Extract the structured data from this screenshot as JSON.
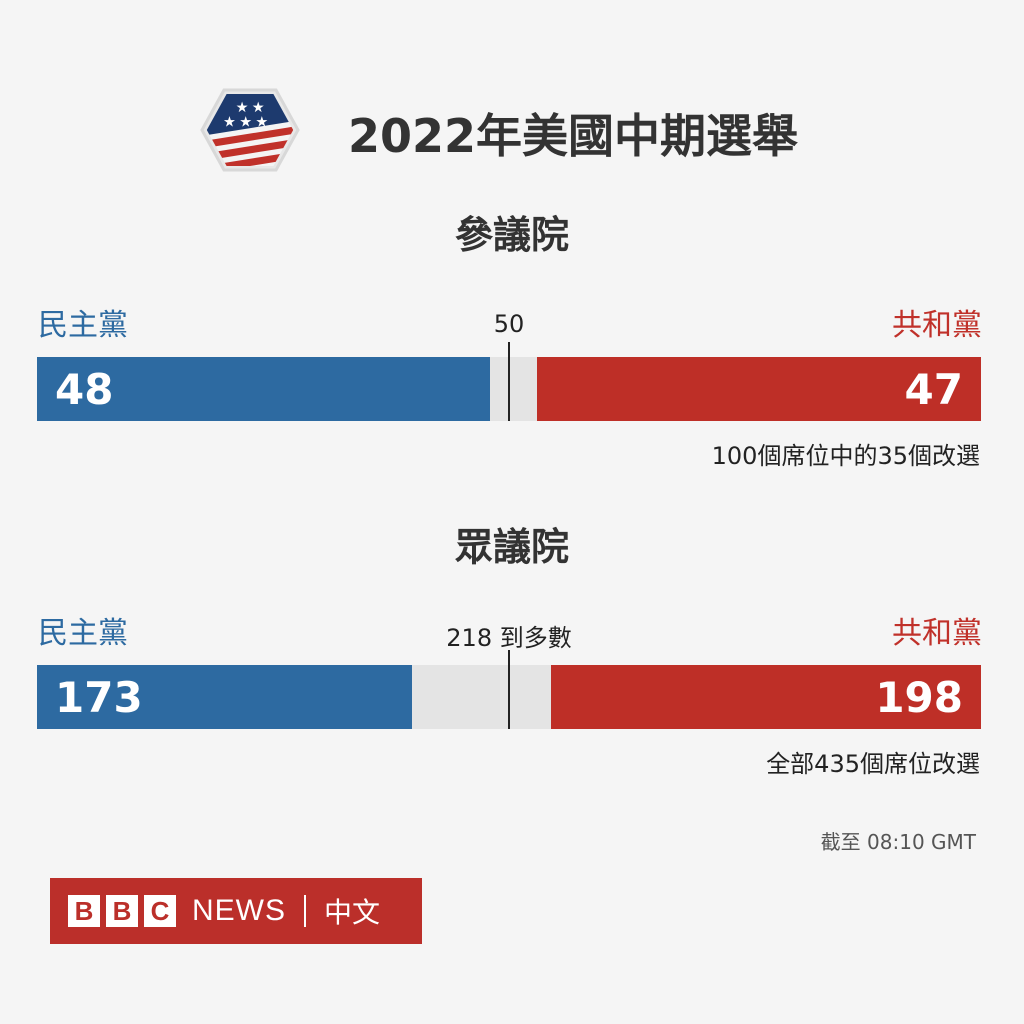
{
  "header": {
    "title": "2022年美國中期選舉",
    "logo_icon": "us-flag-hexagon-icon"
  },
  "colors": {
    "democrat": "#2d6aa1",
    "republican": "#be2f27",
    "track": "#e4e4e4",
    "background": "#f5f5f5"
  },
  "chart_data": [
    {
      "type": "bar",
      "title": "參議院",
      "categories": [
        "民主黨",
        "共和黨"
      ],
      "values": [
        48,
        47
      ],
      "total": 100,
      "threshold": 50,
      "threshold_label": "50",
      "note": "100個席位中的35個改選",
      "dem_label": "民主黨",
      "rep_label": "共和黨",
      "dem_value": "48",
      "rep_value": "47"
    },
    {
      "type": "bar",
      "title": "眾議院",
      "categories": [
        "民主黨",
        "共和黨"
      ],
      "values": [
        173,
        198
      ],
      "total": 435,
      "threshold": 218,
      "threshold_label": "218 到多數",
      "note": "全部435個席位改選",
      "dem_label": "民主黨",
      "rep_label": "共和黨",
      "dem_value": "173",
      "rep_value": "198"
    }
  ],
  "footer": {
    "as_of": "截至 08:10 GMT",
    "brand_letters": [
      "B",
      "B",
      "C"
    ],
    "brand_news": "NEWS",
    "brand_lang": "中文"
  }
}
